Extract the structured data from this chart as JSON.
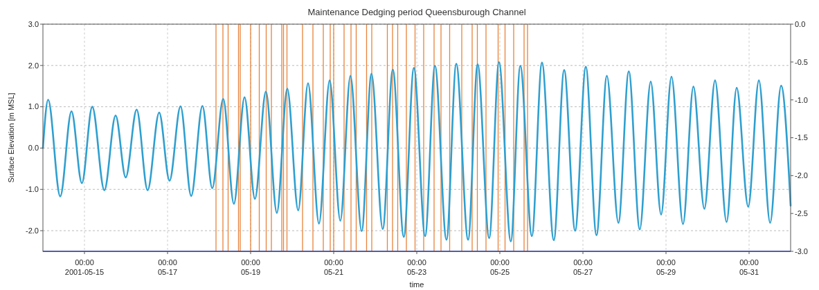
{
  "chart_data": {
    "type": "line",
    "title": "Maintenance Dedging period Queensburough Channel",
    "xlabel": "time",
    "ylabel": "Surface Elevation [m MSL]",
    "xlim": [
      "2001-05-14",
      "2001-06-01"
    ],
    "xticks": [
      {
        "value": "2001-05-15",
        "label": "00:00\n2001-05-15"
      },
      {
        "value": "2001-05-17",
        "label": "00:00\n05-17"
      },
      {
        "value": "2001-05-19",
        "label": "00:00\n05-19"
      },
      {
        "value": "2001-05-21",
        "label": "00:00\n05-21"
      },
      {
        "value": "2001-05-23",
        "label": "00:00\n05-23"
      },
      {
        "value": "2001-05-25",
        "label": "00:00\n05-25"
      },
      {
        "value": "2001-05-27",
        "label": "00:00\n05-27"
      },
      {
        "value": "2001-05-29",
        "label": "00:00\n05-29"
      },
      {
        "value": "2001-05-31",
        "label": "00:00\n05-31"
      }
    ],
    "ylim": [
      -2.5,
      3.0
    ],
    "yticks": [
      {
        "value": -2,
        "label": "-2.0"
      },
      {
        "value": -1,
        "label": "-1.0"
      },
      {
        "value": 0,
        "label": "0.0"
      },
      {
        "value": 1,
        "label": "1.0"
      },
      {
        "value": 2,
        "label": "2.0"
      },
      {
        "value": 3,
        "label": "3.0"
      }
    ],
    "y2lim": [
      -3.0,
      0.0
    ],
    "y2ticks": [
      {
        "value": -3,
        "label": "-3.0"
      },
      {
        "value": -2.5,
        "label": "-2.5"
      },
      {
        "value": -2,
        "label": "-2.0"
      },
      {
        "value": -1.5,
        "label": "-1.5"
      },
      {
        "value": -1,
        "label": "-1.0"
      },
      {
        "value": -0.5,
        "label": "-0.5"
      },
      {
        "value": 0,
        "label": "0.0"
      }
    ],
    "grid": true,
    "line_style": "solid",
    "series": [
      {
        "color": "#2f9fcf",
        "x": [
          "2001-05-14T00:00",
          "2001-05-14T03:00",
          "2001-05-14T10:00",
          "2001-05-14T16:30",
          "2001-05-14T22:30",
          "2001-05-15T04:30",
          "2001-05-15T11:30",
          "2001-05-15T18:00",
          "2001-05-15T23:50",
          "2001-05-16T06:10",
          "2001-05-16T12:30",
          "2001-05-16T19:10",
          "2001-05-17T01:10",
          "2001-05-17T07:30",
          "2001-05-17T13:40",
          "2001-05-17T20:10",
          "2001-05-18T01:50",
          "2001-05-18T08:10",
          "2001-05-18T14:20",
          "2001-05-18T20:30",
          "2001-05-19T02:30",
          "2001-05-19T08:50",
          "2001-05-19T15:10",
          "2001-05-19T21:10",
          "2001-05-20T03:30",
          "2001-05-20T09:10",
          "2001-05-20T15:30",
          "2001-05-20T21:40",
          "2001-05-21T03:50",
          "2001-05-21T09:40",
          "2001-05-21T16:10",
          "2001-05-21T21:50",
          "2001-05-22T04:20",
          "2001-05-22T10:10",
          "2001-05-22T16:30",
          "2001-05-22T22:20",
          "2001-05-23T04:50",
          "2001-05-23T10:30",
          "2001-05-23T17:10",
          "2001-05-23T22:50",
          "2001-05-24T05:40",
          "2001-05-24T11:10",
          "2001-05-24T17:50",
          "2001-05-24T23:30",
          "2001-05-25T06:20",
          "2001-05-25T11:50",
          "2001-05-25T18:30",
          "2001-05-26T00:20",
          "2001-05-26T07:10",
          "2001-05-26T13:10",
          "2001-05-26T19:30",
          "2001-05-27T01:40",
          "2001-05-27T07:50",
          "2001-05-27T13:50",
          "2001-05-27T20:30",
          "2001-05-28T02:30",
          "2001-05-28T08:50",
          "2001-05-28T15:10",
          "2001-05-28T21:10",
          "2001-05-29T03:10",
          "2001-05-29T09:50",
          "2001-05-29T15:50",
          "2001-05-29T22:10",
          "2001-05-30T04:20",
          "2001-05-30T11:00",
          "2001-05-30T16:50",
          "2001-05-30T23:30",
          "2001-05-31T05:40",
          "2001-05-31T12:10",
          "2001-05-31T18:30",
          "2001-06-01T00:00"
        ],
        "values": [
          0.0,
          1.17,
          -1.17,
          0.89,
          -0.85,
          1.0,
          -1.02,
          0.79,
          -0.71,
          0.93,
          -1.02,
          0.86,
          -0.79,
          1.01,
          -1.16,
          1.02,
          -0.97,
          1.19,
          -1.35,
          1.23,
          -1.23,
          1.37,
          -1.57,
          1.44,
          -1.51,
          1.57,
          -1.83,
          1.64,
          -1.76,
          1.75,
          -2.01,
          1.8,
          -1.96,
          1.9,
          -2.15,
          1.94,
          -2.13,
          1.99,
          -2.22,
          2.04,
          -2.22,
          2.03,
          -2.18,
          2.08,
          -2.26,
          1.99,
          -2.13,
          2.07,
          -2.23,
          1.89,
          -2.0,
          1.97,
          -2.11,
          1.75,
          -1.81,
          1.86,
          -1.97,
          1.61,
          -1.61,
          1.73,
          -1.84,
          1.49,
          -1.47,
          1.64,
          -1.79,
          1.46,
          -1.42,
          1.64,
          -1.81,
          1.51,
          -1.39
        ]
      }
    ],
    "ref_lines": [
      {
        "axis": "x",
        "value": "2001-05-18T04:00",
        "color": "#e8823a"
      },
      {
        "axis": "x",
        "value": "2001-05-18T08:00",
        "color": "#e8823a"
      },
      {
        "axis": "x",
        "value": "2001-05-18T11:00",
        "color": "#e8823a"
      },
      {
        "axis": "x",
        "value": "2001-05-18T17:00",
        "color": "#e8823a"
      },
      {
        "axis": "x",
        "value": "2001-05-18T18:00",
        "color": "#e8823a"
      },
      {
        "axis": "x",
        "value": "2001-05-19T00:00",
        "color": "#e8823a"
      },
      {
        "axis": "x",
        "value": "2001-05-19T05:00",
        "color": "#e8823a"
      },
      {
        "axis": "x",
        "value": "2001-05-19T09:00",
        "color": "#e8823a"
      },
      {
        "axis": "x",
        "value": "2001-05-19T12:00",
        "color": "#e8823a"
      },
      {
        "axis": "x",
        "value": "2001-05-19T18:00",
        "color": "#e8823a"
      },
      {
        "axis": "x",
        "value": "2001-05-19T19:00",
        "color": "#e8823a"
      },
      {
        "axis": "x",
        "value": "2001-05-19T21:00",
        "color": "#e8823a"
      },
      {
        "axis": "x",
        "value": "2001-05-20T06:00",
        "color": "#e8823a"
      },
      {
        "axis": "x",
        "value": "2001-05-20T12:00",
        "color": "#e8823a"
      },
      {
        "axis": "x",
        "value": "2001-05-20T18:00",
        "color": "#e8823a"
      },
      {
        "axis": "x",
        "value": "2001-05-20T22:00",
        "color": "#e8823a"
      },
      {
        "axis": "x",
        "value": "2001-05-21T00:00",
        "color": "#e8823a"
      },
      {
        "axis": "x",
        "value": "2001-05-21T06:00",
        "color": "#e8823a"
      },
      {
        "axis": "x",
        "value": "2001-05-21T10:00",
        "color": "#e8823a"
      },
      {
        "axis": "x",
        "value": "2001-05-21T13:00",
        "color": "#e8823a"
      },
      {
        "axis": "x",
        "value": "2001-05-21T19:00",
        "color": "#e8823a"
      },
      {
        "axis": "x",
        "value": "2001-05-21T22:00",
        "color": "#e8823a"
      },
      {
        "axis": "x",
        "value": "2001-05-22T07:00",
        "color": "#e8823a"
      },
      {
        "axis": "x",
        "value": "2001-05-22T10:00",
        "color": "#e8823a"
      },
      {
        "axis": "x",
        "value": "2001-05-22T13:00",
        "color": "#e8823a"
      },
      {
        "axis": "x",
        "value": "2001-05-22T18:00",
        "color": "#e8823a"
      },
      {
        "axis": "x",
        "value": "2001-05-22T23:00",
        "color": "#e8823a"
      },
      {
        "axis": "x",
        "value": "2001-05-23T04:00",
        "color": "#e8823a"
      },
      {
        "axis": "x",
        "value": "2001-05-23T10:00",
        "color": "#e8823a"
      },
      {
        "axis": "x",
        "value": "2001-05-23T14:00",
        "color": "#e8823a"
      },
      {
        "axis": "x",
        "value": "2001-05-23T19:00",
        "color": "#e8823a"
      },
      {
        "axis": "x",
        "value": "2001-05-24T02:00",
        "color": "#e8823a"
      },
      {
        "axis": "x",
        "value": "2001-05-24T08:00",
        "color": "#e8823a"
      },
      {
        "axis": "x",
        "value": "2001-05-24T11:00",
        "color": "#e8823a"
      },
      {
        "axis": "x",
        "value": "2001-05-24T16:00",
        "color": "#e8823a"
      },
      {
        "axis": "x",
        "value": "2001-05-24T23:00",
        "color": "#e8823a"
      },
      {
        "axis": "x",
        "value": "2001-05-25T03:00",
        "color": "#e8823a"
      },
      {
        "axis": "x",
        "value": "2001-05-25T08:00",
        "color": "#e8823a"
      },
      {
        "axis": "x",
        "value": "2001-05-25T14:00",
        "color": "#e8823a"
      },
      {
        "axis": "x",
        "value": "2001-05-25T16:00",
        "color": "#e8823a"
      }
    ]
  }
}
